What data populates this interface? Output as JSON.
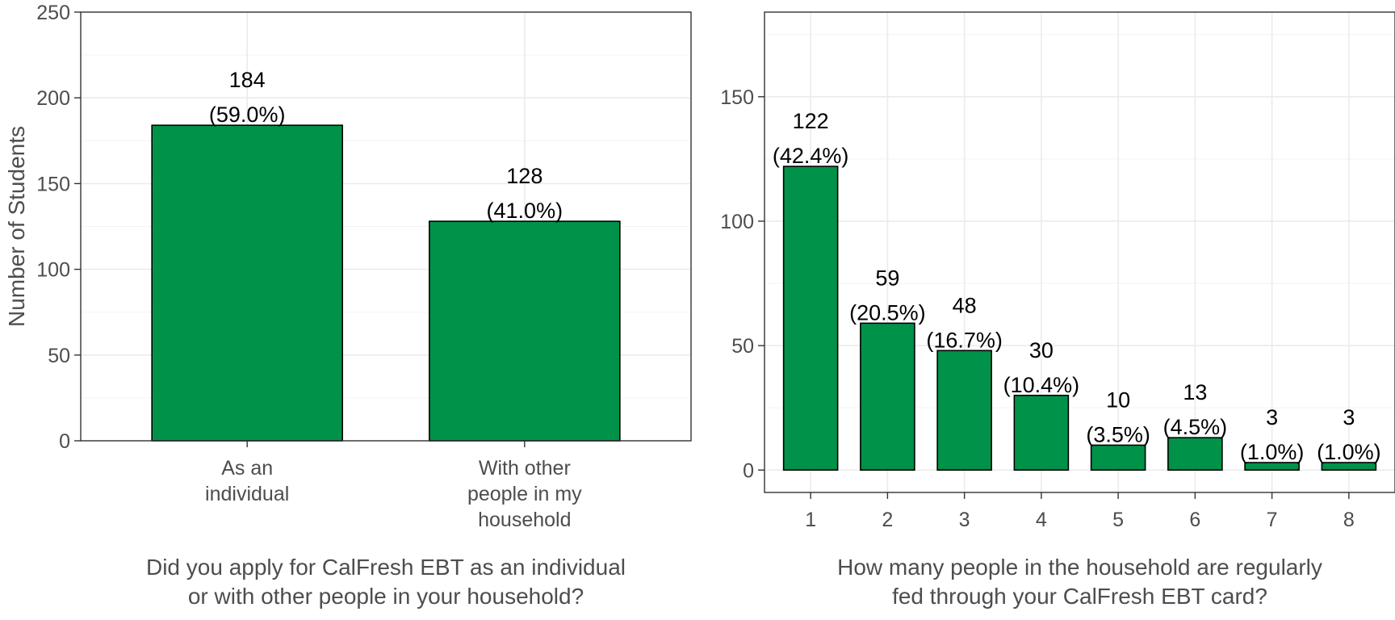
{
  "chart_data": [
    {
      "type": "bar",
      "ylabel": "Number of Students",
      "xlabel": [
        "Did you apply for CalFresh EBT as an individual",
        "or with other people in your household?"
      ],
      "categories": [
        [
          "As an",
          "individual"
        ],
        [
          "With other",
          "people in my",
          "household"
        ]
      ],
      "values": [
        184,
        128
      ],
      "labels": [
        "(59.0%)",
        "(41.0%)"
      ],
      "ylim": [
        0,
        250
      ],
      "yticks": [
        0,
        50,
        100,
        150,
        200,
        250
      ],
      "grid": true,
      "bar_color": "#009249"
    },
    {
      "type": "bar",
      "ylabel": "",
      "xlabel": [
        "How many people in the household are regularly",
        "fed through your CalFresh EBT card?"
      ],
      "categories": [
        [
          "1"
        ],
        [
          "2"
        ],
        [
          "3"
        ],
        [
          "4"
        ],
        [
          "5"
        ],
        [
          "6"
        ],
        [
          "7"
        ],
        [
          "8"
        ]
      ],
      "values": [
        122,
        59,
        48,
        30,
        10,
        13,
        3,
        3
      ],
      "labels": [
        "(42.4%)",
        "(20.5%)",
        "(16.7%)",
        "(10.4%)",
        "(3.5%)",
        "(4.5%)",
        "(1.0%)",
        "(1.0%)"
      ],
      "ylim": [
        -9,
        184
      ],
      "yticks": [
        0,
        50,
        100,
        150
      ],
      "grid": true,
      "bar_color": "#009249"
    }
  ]
}
